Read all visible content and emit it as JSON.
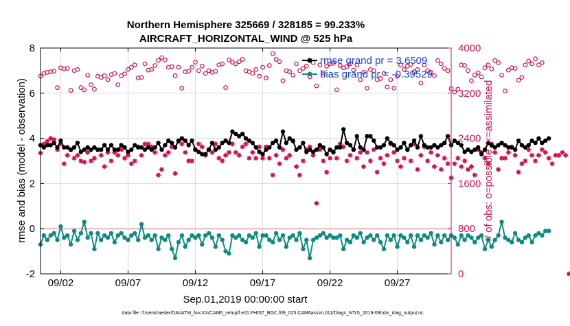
{
  "chart_data": {
    "type": "line",
    "title": "Northern Hemisphere 325669 / 328185 = 99.233%",
    "subtitle": "AIRCRAFT_HORIZONTAL_WIND @ 525 hPa",
    "xlabel": "Sep.01,2019 00:00:00 start",
    "ylabel_left": "rmse and bias (model - observation)",
    "ylabel_right": "# of obs: o=possible; ×=assimilated",
    "footnote": "data file: /Users/raeder/DAI/ATM_forcXX/CAM6_setup/f.e21.FHIST_BGC.f09_025.CAM6assim.011/Diags_NTrS_2019-09/obs_diag_output.nc",
    "xlim": [
      0.5,
      31.0
    ],
    "ylim_left": [
      -2,
      8
    ],
    "ylim_right": [
      0,
      4000
    ],
    "x_ticks": [
      {
        "value": 2,
        "label": "09/02"
      },
      {
        "value": 7,
        "label": "09/07"
      },
      {
        "value": 12,
        "label": "09/12"
      },
      {
        "value": 17,
        "label": "09/17"
      },
      {
        "value": 22,
        "label": "09/22"
      },
      {
        "value": 27,
        "label": "09/27"
      }
    ],
    "y_ticks_left": [
      -2,
      0,
      2,
      4,
      6,
      8
    ],
    "y_ticks_right": [
      0,
      800,
      1600,
      2400,
      3200,
      4000
    ],
    "time_step_days": 0.25,
    "legend": {
      "location": "top-right",
      "entries": [
        {
          "label": "rmse grand pr = 3.6509",
          "color": "#000000"
        },
        {
          "label": "bias grand pr = -0.39529",
          "color": "#0f8a80"
        }
      ]
    },
    "colors": {
      "rmse": "#000000",
      "bias": "#0f8a80",
      "obs": "#d1124f",
      "zero_line": "#e8b8b8"
    },
    "series": [
      {
        "name": "rmse",
        "axis": "left",
        "x_start": 0.5,
        "values": [
          3.7,
          3.6,
          3.7,
          3.7,
          3.8,
          3.6,
          3.9,
          3.6,
          3.6,
          3.5,
          3.6,
          3.8,
          3.4,
          3.5,
          3.6,
          3.5,
          3.6,
          3.5,
          3.5,
          3.7,
          3.5,
          3.7,
          3.5,
          3.5,
          3.7,
          3.6,
          3.4,
          3.5,
          3.7,
          3.6,
          3.6,
          3.5,
          3.6,
          3.5,
          3.6,
          3.8,
          3.5,
          3.7,
          3.9,
          3.8,
          3.6,
          3.9,
          4.0,
          3.9,
          3.7,
          3.9,
          3.5,
          3.4,
          3.3,
          3.3,
          3.5,
          3.8,
          3.5,
          3.6,
          3.8,
          3.9,
          3.8,
          4.3,
          4.2,
          4.1,
          4.2,
          4.0,
          3.9,
          3.8,
          3.6,
          3.4,
          3.3,
          3.5,
          3.6,
          3.8,
          3.9,
          3.6,
          4.3,
          3.8,
          4.0,
          3.9,
          3.5,
          3.6,
          3.8,
          3.4,
          3.5,
          3.4,
          3.5,
          3.7,
          3.6,
          3.3,
          3.5,
          3.4,
          3.6,
          3.6,
          4.4,
          3.8,
          3.7,
          3.5,
          4.1,
          3.6,
          3.5,
          4.1,
          4.1,
          3.9,
          3.6,
          3.6,
          3.7,
          4.0,
          3.8,
          3.7,
          3.5,
          3.6,
          3.8,
          3.5,
          3.7,
          3.9,
          3.6,
          4.1,
          3.7,
          3.6,
          3.6,
          3.7,
          3.6,
          3.7,
          3.8,
          4.1,
          3.7,
          3.9,
          3.8,
          3.7,
          3.4,
          3.5,
          3.4,
          3.5,
          3.6,
          3.3,
          3.5,
          3.8,
          3.7,
          3.6,
          3.7,
          3.8,
          3.7,
          3.6,
          3.6,
          3.5,
          3.9,
          3.7,
          3.6,
          3.7,
          3.9,
          3.8,
          4.0,
          3.8,
          3.9,
          4.0
        ]
      },
      {
        "name": "bias",
        "axis": "left",
        "x_start": 0.5,
        "values": [
          -0.7,
          -0.3,
          -0.5,
          -0.3,
          -0.2,
          -0.5,
          0.1,
          -0.4,
          -0.3,
          -0.7,
          -0.1,
          -0.5,
          -0.2,
          0.3,
          -0.4,
          -0.2,
          -0.9,
          -0.2,
          -0.5,
          -0.3,
          -0.4,
          -0.2,
          -0.6,
          -0.3,
          -0.2,
          -0.4,
          -0.5,
          -0.3,
          -0.2,
          -0.5,
          0.2,
          -0.4,
          -0.3,
          -0.5,
          -0.3,
          -0.9,
          -0.4,
          -0.5,
          -0.3,
          -0.9,
          -1.3,
          -0.6,
          -0.3,
          -0.8,
          -0.5,
          -0.3,
          -0.4,
          -0.3,
          -0.7,
          -0.3,
          -0.2,
          -0.4,
          -0.8,
          -0.3,
          -0.5,
          -1.0,
          -1.1,
          -0.3,
          -0.4,
          -0.3,
          -0.5,
          -0.6,
          -0.3,
          -0.4,
          -0.2,
          -0.8,
          -0.3,
          -0.3,
          -0.5,
          -0.6,
          -0.2,
          -0.5,
          -0.3,
          -0.8,
          -0.4,
          -0.3,
          -0.5,
          -0.2,
          -0.9,
          -0.5,
          -1.3,
          -0.5,
          -0.4,
          -0.3,
          -0.2,
          -0.4,
          -0.3,
          -0.4,
          -0.4,
          -0.3,
          -0.9,
          -0.5,
          -0.6,
          -0.3,
          -0.4,
          -0.2,
          -0.6,
          -0.4,
          -0.3,
          -0.5,
          -0.3,
          -0.6,
          -0.9,
          -0.3,
          -0.5,
          -0.3,
          -0.8,
          -0.3,
          -0.4,
          -0.6,
          -0.3,
          -0.8,
          -0.3,
          -0.5,
          -0.3,
          -0.4,
          -0.2,
          -0.7,
          -0.3,
          -0.6,
          -0.3,
          -0.5,
          -0.3,
          -0.4,
          -0.7,
          -0.3,
          -0.5,
          -0.3,
          -0.4,
          -0.6,
          -0.4,
          -0.3,
          -0.9,
          -0.5,
          -0.8,
          -0.5,
          -0.3,
          0.3,
          -0.4,
          -0.5,
          -0.6,
          -0.2,
          -0.5,
          -0.6,
          -0.4,
          -0.3,
          -0.6,
          -0.3,
          -0.2,
          -0.3,
          -0.1,
          -0.1
        ]
      },
      {
        "name": "obs possible",
        "axis": "right",
        "marker": "circle",
        "x_start": 0.5,
        "values": [
          3500,
          3550,
          3570,
          3580,
          3590,
          3300,
          3650,
          3630,
          3640,
          3250,
          3600,
          3620,
          3300,
          3260,
          3520,
          3350,
          3270,
          3500,
          3480,
          3510,
          3440,
          3530,
          3550,
          3350,
          3510,
          3540,
          3620,
          3660,
          3700,
          3470,
          3480,
          3720,
          3610,
          3620,
          3690,
          3780,
          3830,
          3790,
          3660,
          3670,
          3510,
          3660,
          3290,
          3580,
          3590,
          3660,
          3750,
          3600,
          3680,
          3550,
          3600,
          3570,
          3590,
          3700,
          3720,
          3300,
          3790,
          3750,
          3720,
          3760,
          3800,
          3600,
          3580,
          3550,
          3620,
          3500,
          3660,
          3470,
          3690,
          3900,
          3800,
          3760,
          3420,
          3600,
          3580,
          3520,
          3720,
          3600,
          3640,
          3680,
          3490,
          3740,
          3330,
          3700,
          3560,
          3680,
          3720,
          3730,
          3260,
          3690,
          3650,
          3670,
          3720,
          3610,
          3700,
          3440,
          3570,
          3290,
          3620,
          3600,
          3440,
          3460,
          3550,
          3310,
          3440,
          3290,
          3500,
          3700,
          3620,
          3680,
          3710,
          3580,
          3620,
          3380,
          3700,
          3600,
          3570,
          3510,
          3780,
          3720,
          3640,
          3600,
          3280,
          3220,
          3270,
          3700,
          3690,
          3600,
          3420,
          3520,
          3560,
          3490,
          3650,
          3700,
          3630,
          3780,
          3740,
          3520,
          3240,
          3610,
          3650,
          3640,
          3430,
          3480,
          3700,
          3770,
          3720,
          3810,
          3700,
          3740
        ]
      },
      {
        "name": "obs assimilated",
        "axis": "right",
        "marker": "asterisk",
        "x_start": 0.5,
        "values": [
          2140,
          2300,
          2350,
          2400,
          2380,
          2200,
          2300,
          1950,
          2100,
          2200,
          2050,
          2100,
          2000,
          1980,
          2150,
          2000,
          2050,
          2200,
          2100,
          1900,
          2150,
          2000,
          2150,
          2100,
          2200,
          2050,
          2100,
          1950,
          2000,
          2250,
          2100,
          2300,
          2300,
          2250,
          2150,
          1750,
          1850,
          2100,
          2150,
          2250,
          1780,
          2350,
          2300,
          2150,
          2000,
          2000,
          2200,
          2300,
          2250,
          2100,
          2200,
          2150,
          2300,
          2050,
          2000,
          2100,
          2150,
          2300,
          2150,
          2100,
          2250,
          2300,
          2050,
          2150,
          2050,
          2250,
          2050,
          2250,
          2050,
          1750,
          2100,
          1950,
          2200,
          2050,
          2100,
          2350,
          1900,
          1750,
          2000,
          2200,
          2250,
          2100,
          1250,
          2200,
          2000,
          1800,
          2050,
          2150,
          2050,
          2300,
          2250,
          2000,
          2100,
          2200,
          2050,
          2150,
          1900,
          2150,
          2000,
          2200,
          1800,
          2050,
          1950,
          2100,
          2300,
          2150,
          2000,
          1900,
          2050,
          2200,
          2000,
          2300,
          1850,
          2100,
          2250,
          2000,
          2150,
          1900,
          2100,
          1850,
          2050,
          1950,
          1700,
          1950,
          2050,
          1900,
          2000,
          1850,
          1900,
          1750,
          2200,
          2150,
          2050,
          1950,
          2300,
          2150,
          1850,
          2050,
          2050,
          2150,
          2250,
          2100,
          1800,
          1950,
          2000,
          2200,
          2100,
          2000,
          2100,
          2200,
          2150,
          2050,
          1950,
          2100,
          2100,
          2150,
          2100,
          0
        ]
      }
    ]
  }
}
